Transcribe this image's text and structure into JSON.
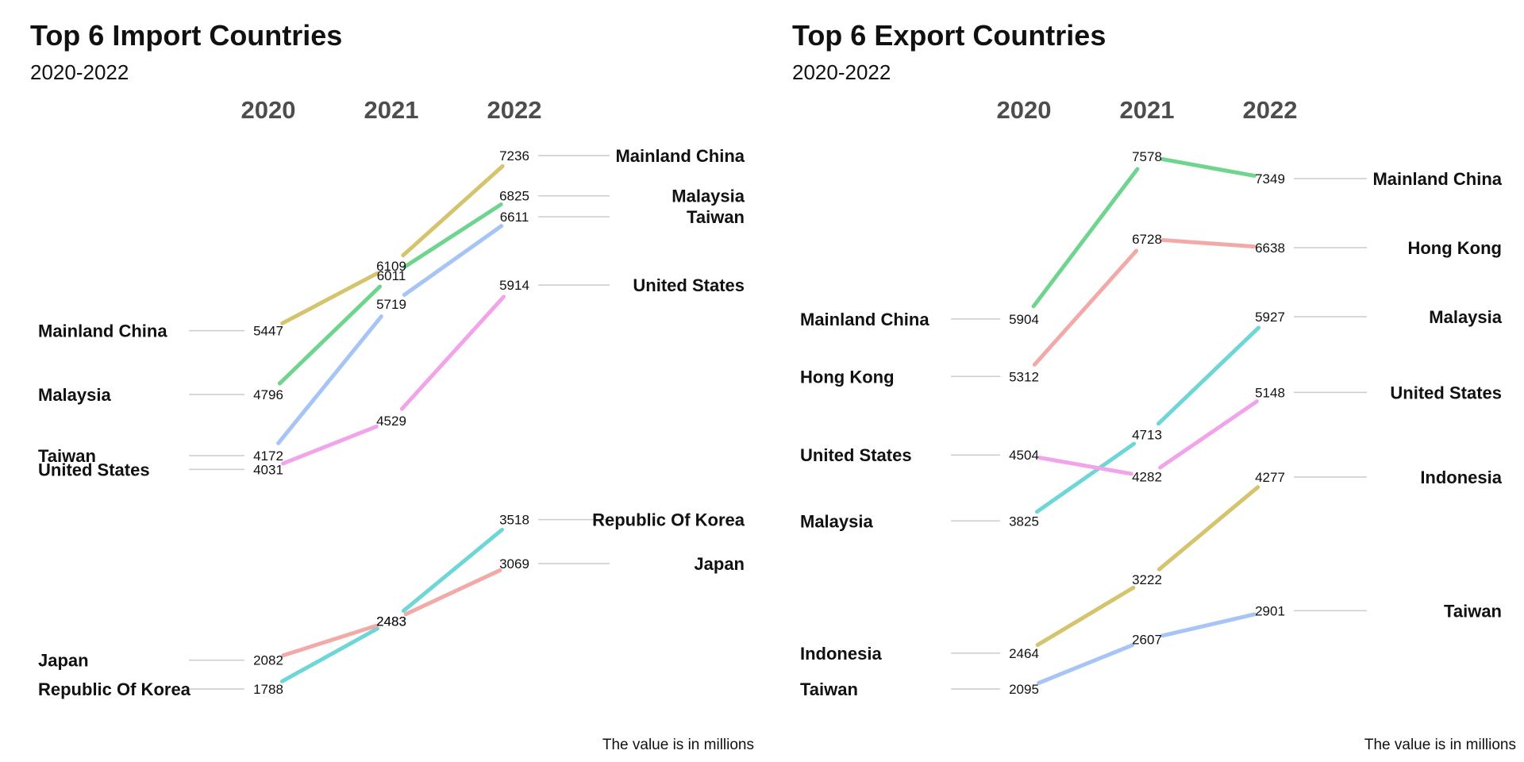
{
  "caption": "The value is in millions",
  "colors": {
    "Mainland China": "#d4c46e",
    "Malaysia": "#6fd48e",
    "Taiwan": "#a6c4f6",
    "United States": "#f2a4ea",
    "Republic Of Korea": "#6fd6d8",
    "Japan": "#f2aaa8",
    "Hong Kong": "#f2aaa8",
    "Indonesia": "#d4c46e",
    "export:Mainland China": "#6fd48e",
    "export:Taiwan": "#a6c4f6",
    "export:Malaysia": "#6fd6d8",
    "export:United States": "#f2a4ea"
  },
  "chart_data": [
    {
      "type": "line",
      "title": "Top 6 Import Countries",
      "subtitle": "2020-2022",
      "x": [
        "2020",
        "2021",
        "2022"
      ],
      "ylim": [
        1700,
        7300
      ],
      "series": [
        {
          "name": "Mainland China",
          "values": [
            5447,
            6109,
            7236
          ]
        },
        {
          "name": "Malaysia",
          "values": [
            4796,
            6011,
            6825
          ]
        },
        {
          "name": "Taiwan",
          "values": [
            4172,
            5719,
            6611
          ]
        },
        {
          "name": "United States",
          "values": [
            4031,
            4529,
            5914
          ]
        },
        {
          "name": "Republic Of Korea",
          "values": [
            1788,
            2483,
            3518
          ]
        },
        {
          "name": "Japan",
          "values": [
            2082,
            2483,
            3069
          ]
        }
      ]
    },
    {
      "type": "line",
      "title": "Top 6 Export Countries",
      "subtitle": "2020-2022",
      "x": [
        "2020",
        "2021",
        "2022"
      ],
      "ylim": [
        2000,
        7650
      ],
      "series": [
        {
          "name": "Mainland China",
          "values": [
            5904,
            7578,
            7349
          ]
        },
        {
          "name": "Hong Kong",
          "values": [
            5312,
            6728,
            6638
          ]
        },
        {
          "name": "Malaysia",
          "values": [
            3825,
            4713,
            5927
          ]
        },
        {
          "name": "United States",
          "values": [
            4504,
            4282,
            5148
          ]
        },
        {
          "name": "Indonesia",
          "values": [
            2464,
            3222,
            4277
          ]
        },
        {
          "name": "Taiwan",
          "values": [
            2095,
            2607,
            2901
          ]
        }
      ]
    }
  ]
}
